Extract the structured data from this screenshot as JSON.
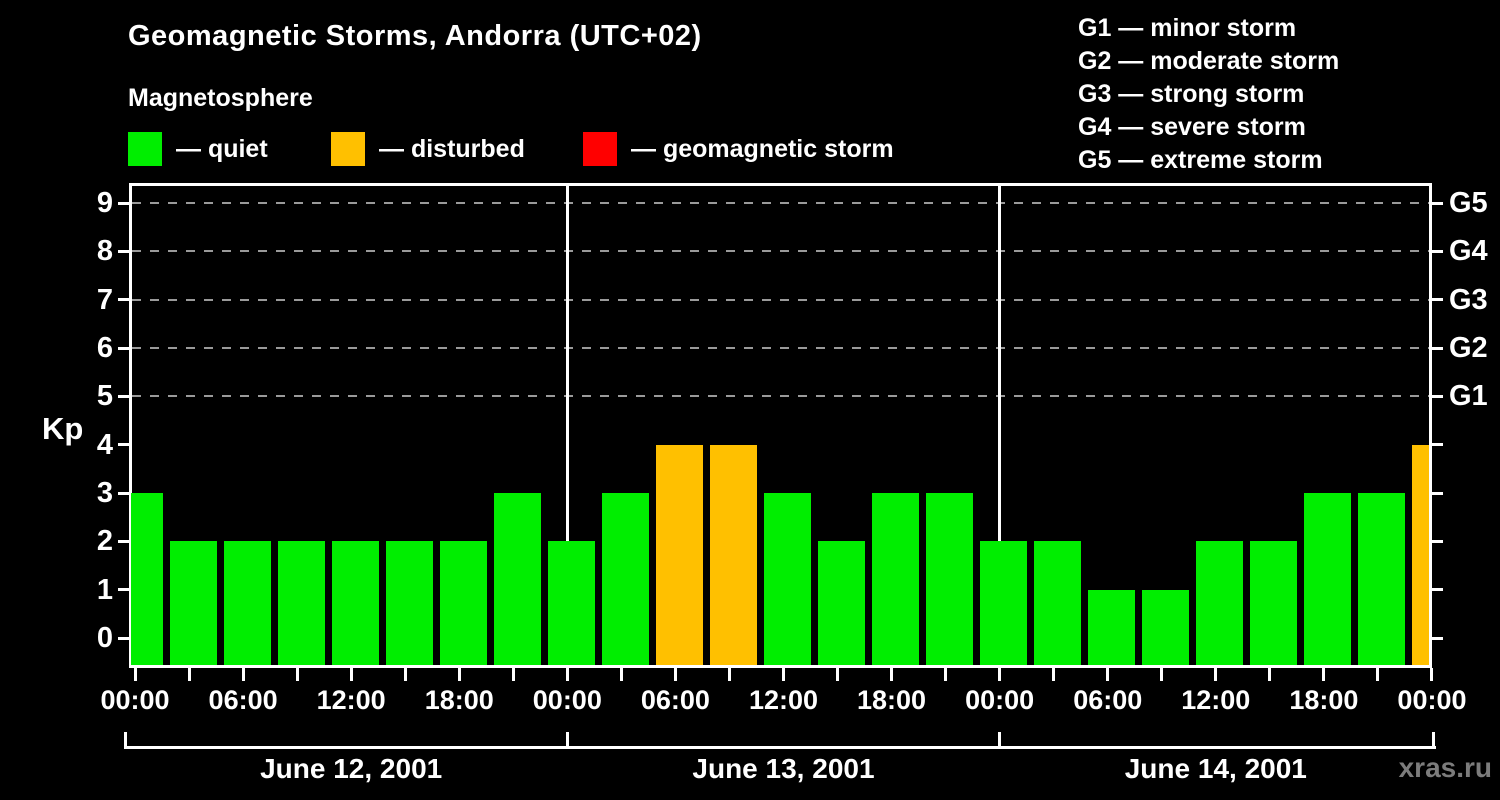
{
  "title": "Geomagnetic Storms, Andorra (UTC+02)",
  "subtitle": "Magnetosphere",
  "legend": {
    "items": [
      {
        "name": "quiet",
        "label": "— quiet",
        "color": "#00ee00"
      },
      {
        "name": "disturbed",
        "label": "— disturbed",
        "color": "#ffc000"
      },
      {
        "name": "storm",
        "label": "— geomagnetic storm",
        "color": "#ff0000"
      }
    ]
  },
  "g_legend": {
    "items": [
      {
        "label": "G1 — minor storm"
      },
      {
        "label": "G2 — moderate storm"
      },
      {
        "label": "G3 — strong storm"
      },
      {
        "label": "G4 — severe storm"
      },
      {
        "label": "G5 — extreme storm"
      }
    ]
  },
  "watermark": "xras.ru",
  "chart_data": {
    "type": "bar",
    "title": "Geomagnetic Storms, Andorra (UTC+02)",
    "subtitle": "Magnetosphere",
    "ylabel": "Kp",
    "ylim": [
      0,
      9
    ],
    "y_ticks": [
      0,
      1,
      2,
      3,
      4,
      5,
      6,
      7,
      8,
      9
    ],
    "grid_levels": [
      5,
      6,
      7,
      8,
      9
    ],
    "right_axis_labels": [
      {
        "kp": 5,
        "label": "G1"
      },
      {
        "kp": 6,
        "label": "G2"
      },
      {
        "kp": 7,
        "label": "G3"
      },
      {
        "kp": 8,
        "label": "G4"
      },
      {
        "kp": 9,
        "label": "G5"
      }
    ],
    "interval_hours": 3,
    "x_tick_labels_cycle": [
      "00:00",
      "06:00",
      "12:00",
      "18:00"
    ],
    "x_final_label": "00:00",
    "days": [
      {
        "date": "June 12, 2001",
        "values": [
          3,
          2,
          2,
          2,
          2,
          2,
          2,
          3
        ]
      },
      {
        "date": "June 13, 2001",
        "values": [
          2,
          3,
          4,
          4,
          3,
          2,
          3,
          3
        ]
      },
      {
        "date": "June 14, 2001",
        "values": [
          2,
          2,
          1,
          1,
          2,
          2,
          3,
          3
        ]
      }
    ],
    "next_partial_bar": {
      "value": 4,
      "status": "disturbed"
    },
    "status_colors": {
      "quiet": "#00ee00",
      "disturbed": "#ffc000",
      "storm": "#ff0000"
    },
    "grid_on": true,
    "legend_position": "top"
  }
}
